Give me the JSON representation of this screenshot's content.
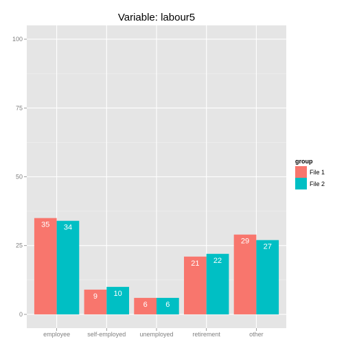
{
  "chart_data": {
    "type": "bar",
    "title": "Variable:  labour5",
    "xlabel": "",
    "ylabel": "",
    "categories": [
      "employee",
      "self-employed",
      "unemployed",
      "retirement",
      "other"
    ],
    "series": [
      {
        "name": "File 1",
        "color": "#F8766D",
        "values": [
          35,
          9,
          6,
          21,
          29
        ]
      },
      {
        "name": "File 2",
        "color": "#00BFC4",
        "values": [
          34,
          10,
          6,
          22,
          27
        ]
      }
    ],
    "ylim": [
      -5,
      105
    ],
    "yticks": [
      0,
      25,
      50,
      75,
      100
    ],
    "grid": true,
    "legend": {
      "title": "group",
      "placement": "right"
    },
    "panel_color": "#E5E5E5"
  }
}
